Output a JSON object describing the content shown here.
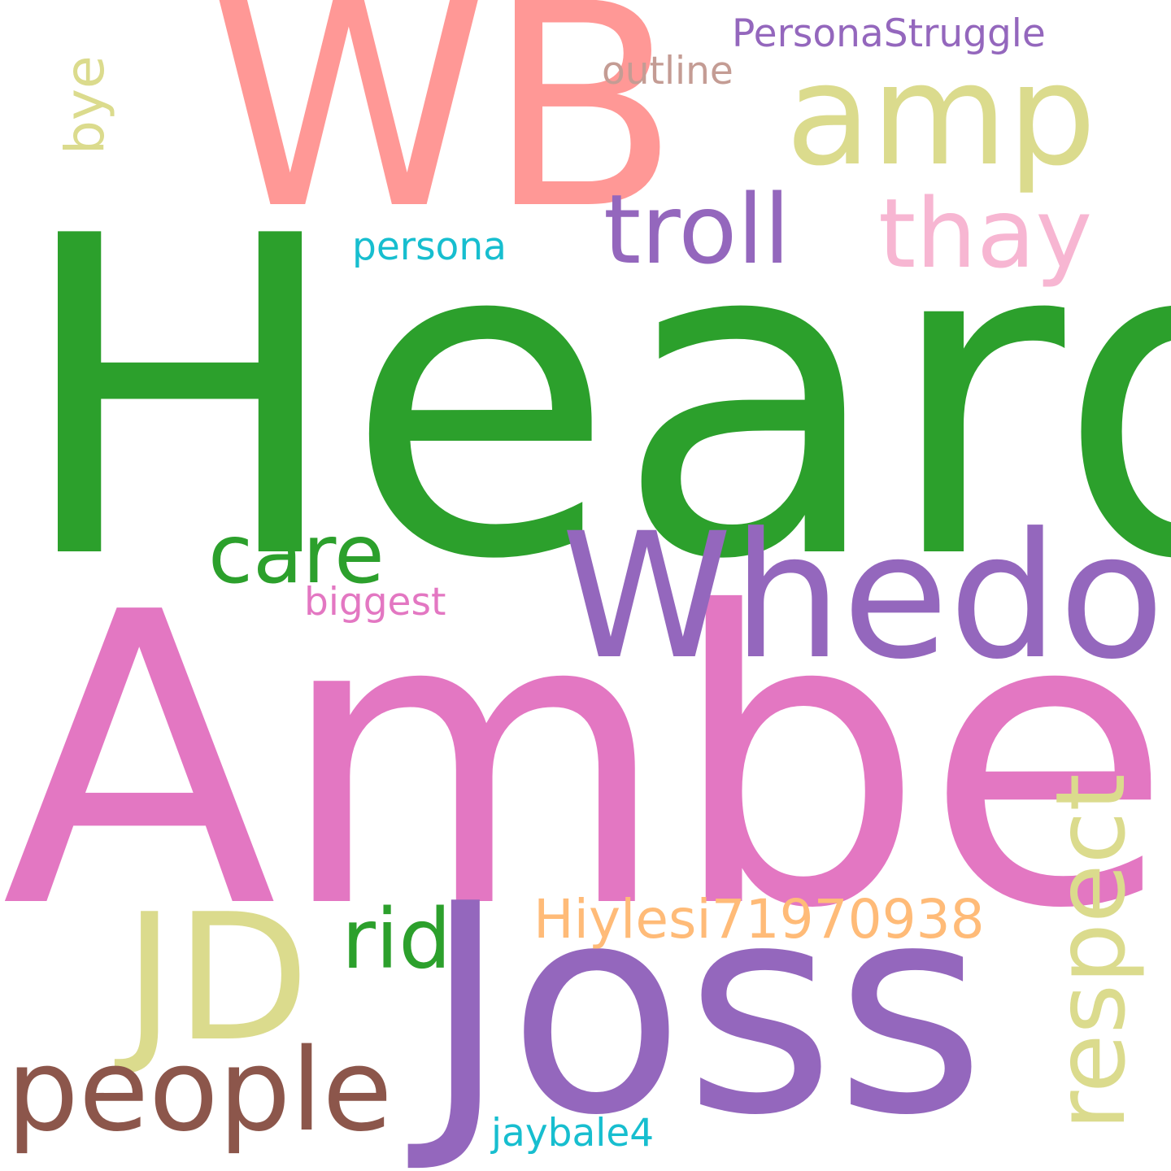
{
  "words": [
    {
      "id": "heard",
      "text": "Heard",
      "color": "#2ca02c"
    },
    {
      "id": "amber",
      "text": "Amber",
      "color": "#e377c2"
    },
    {
      "id": "joss",
      "text": "Joss",
      "color": "#9467bd"
    },
    {
      "id": "wb",
      "text": "WB",
      "color": "#ff9896"
    },
    {
      "id": "whedon",
      "text": "Whedon",
      "color": "#9467bd"
    },
    {
      "id": "jd",
      "text": "JD",
      "color": "#dbdb8d"
    },
    {
      "id": "amp",
      "text": "amp",
      "color": "#dbdb8d"
    },
    {
      "id": "people",
      "text": "people",
      "color": "#8c564b"
    },
    {
      "id": "respect",
      "text": "respect",
      "color": "#dbdb8d"
    },
    {
      "id": "troll",
      "text": "troll",
      "color": "#9467bd"
    },
    {
      "id": "thay",
      "text": "thay",
      "color": "#f7b6d2"
    },
    {
      "id": "care",
      "text": "care",
      "color": "#2ca02c"
    },
    {
      "id": "rid",
      "text": "rid",
      "color": "#2ca02c"
    },
    {
      "id": "hiylesi",
      "text": "Hiylesi71970938",
      "color": "#ffbb78"
    },
    {
      "id": "bye",
      "text": "bye",
      "color": "#dbdb8d"
    },
    {
      "id": "personastruggle",
      "text": "PersonaStruggle",
      "color": "#9467bd"
    },
    {
      "id": "outline",
      "text": "outline",
      "color": "#c49c94"
    },
    {
      "id": "persona",
      "text": "persona",
      "color": "#17becf"
    },
    {
      "id": "biggest",
      "text": "biggest",
      "color": "#e377c2"
    },
    {
      "id": "jaybale4",
      "text": "jaybale4",
      "color": "#17becf"
    }
  ]
}
